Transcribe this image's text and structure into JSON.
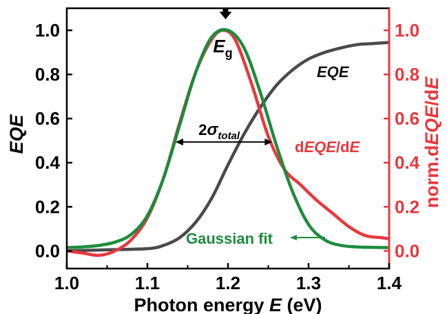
{
  "chart_data": {
    "type": "line",
    "x_axis": {
      "label_text": "Photon energy ",
      "label_var": "E",
      "label_unit": " (eV)",
      "lim": [
        1.0,
        1.4
      ],
      "ticks": [
        "1.0",
        "1.1",
        "1.2",
        "1.3",
        "1.4"
      ]
    },
    "y_left": {
      "label": "EQE",
      "lim": [
        -0.08,
        1.1
      ],
      "ticks": [
        "0.0",
        "0.2",
        "0.4",
        "0.6",
        "0.8",
        "1.0"
      ],
      "color": "#000000"
    },
    "y_right": {
      "label_prefix": "norm.d",
      "label_var": "EQE",
      "label_mid": "/d",
      "label_var2": "E",
      "lim": [
        -0.08,
        1.1
      ],
      "ticks": [
        "0.0",
        "0.2",
        "0.4",
        "0.6",
        "0.8",
        "1.0"
      ],
      "color": "#e8383d"
    },
    "series": [
      {
        "name": "EQE",
        "color": "#4a4a4a",
        "x": [
          1.0,
          1.05,
          1.1,
          1.12,
          1.14,
          1.16,
          1.18,
          1.2,
          1.22,
          1.24,
          1.26,
          1.28,
          1.3,
          1.32,
          1.34,
          1.36,
          1.38,
          1.4
        ],
        "y": [
          0.0,
          0.005,
          0.01,
          0.025,
          0.06,
          0.13,
          0.24,
          0.39,
          0.53,
          0.65,
          0.75,
          0.82,
          0.87,
          0.9,
          0.92,
          0.935,
          0.94,
          0.945
        ]
      },
      {
        "name": "dEQE/dE",
        "color": "#e8383d",
        "x": [
          1.0,
          1.02,
          1.04,
          1.06,
          1.08,
          1.1,
          1.12,
          1.14,
          1.16,
          1.18,
          1.195,
          1.21,
          1.23,
          1.25,
          1.27,
          1.29,
          1.31,
          1.33,
          1.35,
          1.37,
          1.39,
          1.4
        ],
        "y": [
          0.0,
          -0.01,
          -0.02,
          0.0,
          0.05,
          0.15,
          0.33,
          0.58,
          0.81,
          0.96,
          1.0,
          0.95,
          0.75,
          0.52,
          0.37,
          0.3,
          0.23,
          0.17,
          0.11,
          0.07,
          0.06,
          0.055
        ]
      },
      {
        "name": "Gaussian fit",
        "color": "#1d8c3c",
        "x": [
          1.0,
          1.02,
          1.04,
          1.06,
          1.08,
          1.1,
          1.12,
          1.14,
          1.16,
          1.18,
          1.2,
          1.22,
          1.24,
          1.26,
          1.28,
          1.3,
          1.32,
          1.34,
          1.36,
          1.38,
          1.4
        ],
        "y": [
          0.015,
          0.018,
          0.025,
          0.04,
          0.075,
          0.16,
          0.33,
          0.57,
          0.81,
          0.97,
          1.0,
          0.92,
          0.72,
          0.48,
          0.27,
          0.12,
          0.05,
          0.025,
          0.018,
          0.016,
          0.015
        ]
      }
    ],
    "annotations": {
      "eg_main": "E",
      "eg_sub": "g",
      "eg_x": 1.197,
      "sigma_prefix": "2",
      "sigma_symbol": "σ",
      "sigma_sub": "total",
      "sigma_x": [
        1.135,
        1.255
      ],
      "sigma_y": 0.5,
      "eqe_label": "EQE",
      "deqe_prefix": "d",
      "deqe_var": "EQE",
      "deqe_mid": "/d",
      "deqe_var2": "E",
      "gauss_label": "Gaussian fit"
    }
  }
}
